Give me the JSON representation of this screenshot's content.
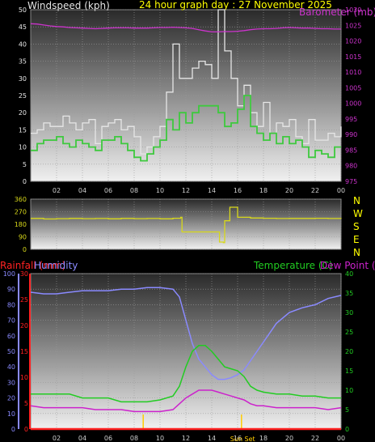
{
  "header": {
    "title": "24 hour graph day : 27 November 2025",
    "left_label": "Windspeed (kph)",
    "right_label": "Barometer (mb)"
  },
  "x_ticks": [
    "02",
    "04",
    "06",
    "08",
    "10",
    "12",
    "14",
    "16",
    "18",
    "20",
    "22",
    "00"
  ],
  "colors": {
    "gust": "#e6e6e6",
    "avg": "#3ec93e",
    "baro": "#cc33cc",
    "dir": "#d8d81a",
    "rain": "#ff2222",
    "humidity": "#8a8aff",
    "temp": "#22cc22",
    "dew": "#cc22cc",
    "title": "#ffff00",
    "bg_top": "#2a2a2a",
    "bg_bottom": "#f0f0f0"
  },
  "chart_data": [
    {
      "type": "line",
      "name": "wind-barometer",
      "x": [
        0,
        0.5,
        1,
        1.5,
        2,
        2.5,
        3,
        3.5,
        4,
        4.5,
        5,
        5.5,
        6,
        6.5,
        7,
        7.5,
        8,
        8.5,
        9,
        9.5,
        10,
        10.5,
        11,
        11.5,
        12,
        12.5,
        13,
        13.5,
        14,
        14.5,
        15,
        15.5,
        16,
        16.5,
        17,
        17.5,
        18,
        18.5,
        19,
        19.5,
        20,
        20.5,
        21,
        21.5,
        22,
        22.5,
        23,
        23.5,
        24
      ],
      "series": [
        {
          "role": "gust",
          "axis": "left",
          "values": [
            14,
            15,
            17,
            16,
            16,
            19,
            17,
            15,
            17,
            18,
            11,
            16,
            17,
            18,
            15,
            16,
            13,
            8,
            10,
            13,
            16,
            26,
            40,
            30,
            30,
            33,
            35,
            34,
            30,
            50,
            38,
            30,
            22,
            28,
            20,
            16,
            23,
            14,
            17,
            16,
            18,
            13,
            11,
            18,
            12,
            12,
            14,
            13,
            16
          ]
        },
        {
          "role": "avg",
          "axis": "left",
          "values": [
            9,
            11,
            12,
            12,
            13,
            11,
            10,
            12,
            11,
            10,
            9,
            12,
            12,
            13,
            11,
            9,
            7,
            6,
            8,
            10,
            12,
            18,
            15,
            20,
            17,
            20,
            22,
            22,
            22,
            20,
            16,
            17,
            21,
            25,
            16,
            14,
            12,
            14,
            11,
            13,
            11,
            12,
            10,
            7,
            9,
            8,
            7,
            10,
            10
          ]
        },
        {
          "role": "baro",
          "axis": "right",
          "values": [
            1025.5,
            1025.4,
            1025.1,
            1024.8,
            1024.6,
            1024.5,
            1024.3,
            1024.2,
            1024.1,
            1024,
            1023.9,
            1024,
            1024.1,
            1024.2,
            1024.2,
            1024.2,
            1024.1,
            1024.1,
            1024.1,
            1024.2,
            1024.3,
            1024.3,
            1024.4,
            1024.3,
            1024.2,
            1024,
            1023.6,
            1023.2,
            1022.9,
            1022.9,
            1023,
            1023,
            1023.1,
            1023.3,
            1023.6,
            1023.8,
            1023.9,
            1023.9,
            1024,
            1024.2,
            1024.3,
            1024.2,
            1024.1,
            1024.1,
            1024,
            1023.9,
            1023.9,
            1023.8,
            1023.8
          ]
        }
      ],
      "ylim_left": [
        0,
        50
      ],
      "ylim_right": [
        975,
        1030
      ],
      "y_ticks_left": [
        "0",
        "5",
        "10",
        "15",
        "20",
        "25",
        "30",
        "35",
        "40",
        "45",
        "50"
      ],
      "y_ticks_right": [
        "975",
        "980",
        "985",
        "990",
        "995",
        "1000",
        "1005",
        "1010",
        "1015",
        "1020",
        "1025",
        "1030"
      ]
    },
    {
      "type": "line",
      "name": "wind-direction",
      "x": [
        0,
        1,
        2,
        3,
        4,
        5,
        6,
        7,
        8,
        9,
        10,
        11,
        11.6,
        11.7,
        12.5,
        13,
        13.5,
        14,
        14.3,
        14.6,
        14.9,
        15,
        15.4,
        16,
        17,
        18,
        19,
        20,
        21,
        22,
        23,
        24
      ],
      "series": [
        {
          "role": "dir",
          "values": [
            222,
            218,
            220,
            222,
            220,
            221,
            219,
            222,
            220,
            221,
            219,
            223,
            230,
            125,
            125,
            125,
            125,
            125,
            125,
            52,
            48,
            205,
            302,
            230,
            225,
            223,
            221,
            222,
            222,
            223,
            221,
            220
          ]
        }
      ],
      "ylim": [
        0,
        360
      ],
      "y_ticks": [
        "0",
        "90",
        "180",
        "270",
        "360"
      ],
      "compass": [
        "N",
        "W",
        "S",
        "E",
        "N"
      ]
    },
    {
      "type": "line",
      "name": "temperature-humidity",
      "x": [
        0,
        1,
        2,
        3,
        4,
        5,
        6,
        7,
        8,
        9,
        10,
        11,
        11.5,
        12,
        12.5,
        13,
        13.5,
        14,
        14.5,
        15,
        15.5,
        16,
        16.5,
        17,
        17.5,
        18,
        19,
        20,
        21,
        22,
        23,
        24
      ],
      "series": [
        {
          "role": "humidity",
          "axis": "humidity",
          "values": [
            88,
            87,
            87,
            88,
            89,
            89,
            89,
            90,
            90,
            91,
            91,
            90,
            85,
            70,
            55,
            45,
            40,
            35,
            32,
            32,
            33,
            35,
            38,
            44,
            50,
            56,
            68,
            75,
            78,
            80,
            84,
            86
          ]
        },
        {
          "role": "temp",
          "axis": "temp",
          "values": [
            9,
            9,
            9,
            9,
            8,
            8,
            8,
            7,
            7,
            7,
            7.5,
            8.5,
            11,
            16,
            20,
            21.5,
            21.5,
            20,
            18,
            16,
            15.5,
            15,
            13.5,
            11,
            10,
            9.5,
            9,
            9,
            8.5,
            8.5,
            8,
            8
          ]
        },
        {
          "role": "dew",
          "axis": "temp",
          "values": [
            6,
            5.5,
            5.5,
            5.5,
            5.5,
            5,
            5,
            5,
            4.5,
            4.5,
            4.5,
            5,
            6.5,
            8,
            9,
            10,
            10,
            10,
            9.5,
            9,
            8.5,
            8,
            7.5,
            6.5,
            6,
            6,
            5.5,
            5.5,
            5.5,
            5.5,
            5,
            5.5
          ]
        },
        {
          "role": "rain",
          "axis": "rain",
          "values": [
            0,
            0,
            0,
            0,
            0,
            0,
            0,
            0,
            0,
            0,
            0,
            0,
            0,
            0,
            0,
            0,
            0,
            0,
            0,
            0,
            0,
            0,
            0,
            0,
            0,
            0,
            0,
            0,
            0,
            0,
            0,
            0
          ]
        }
      ],
      "ylim_humidity": [
        0,
        100
      ],
      "ylim_rain": [
        0,
        30
      ],
      "ylim_temp": [
        0,
        40
      ],
      "y_ticks_humidity": [
        "0",
        "10",
        "20",
        "30",
        "40",
        "50",
        "60",
        "70",
        "80",
        "90",
        "100"
      ],
      "y_ticks_rain": [
        "0",
        "5",
        "10",
        "15",
        "20",
        "25",
        "30"
      ],
      "y_ticks_temp": [
        "0",
        "5",
        "10",
        "15",
        "20",
        "25",
        "30",
        "35",
        "40"
      ],
      "labels": {
        "rain": "Rainfall (mm)",
        "humidity": "Humidity",
        "temp": "Temperature (C)",
        "dew": "Dew Point (C)"
      },
      "sun_markers": [
        {
          "x": 8.7,
          "text": ""
        },
        {
          "x": 16.3,
          "text": "Sun Set"
        }
      ]
    }
  ]
}
